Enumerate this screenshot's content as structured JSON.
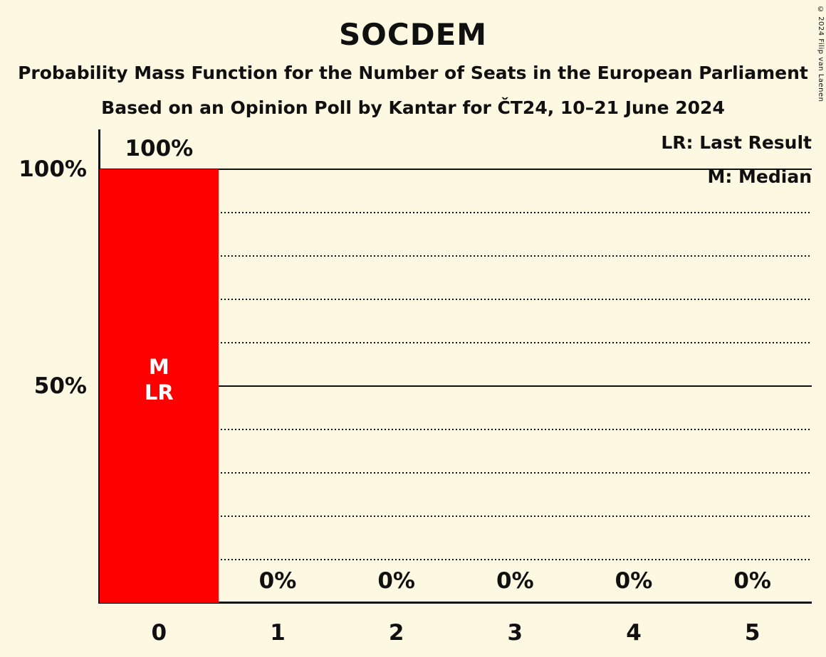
{
  "page": {
    "title": "SOCDEM",
    "subtitle1": "Probability Mass Function for the Number of Seats in the European Parliament",
    "subtitle2": "Based on an Opinion Poll by Kantar for ČT24, 10–21 June 2024",
    "copyright": "© 2024 Filip van Laenen"
  },
  "legend": {
    "last_result": "LR: Last Result",
    "median": "M: Median"
  },
  "colors": {
    "background": "#FCF8E1",
    "bar": "#FF0000",
    "text": "#101010",
    "annotation_text": "#FFFFFF"
  },
  "chart_data": {
    "type": "bar",
    "title": "SOCDEM",
    "categories": [
      "0",
      "1",
      "2",
      "3",
      "4",
      "5"
    ],
    "values": [
      100,
      0,
      0,
      0,
      0,
      0
    ],
    "value_labels": [
      "100%",
      "0%",
      "0%",
      "0%",
      "0%",
      "0%"
    ],
    "xlabel": "",
    "ylabel": "",
    "ylim": [
      0,
      100
    ],
    "yticks": [
      {
        "value": 100,
        "label": "100%"
      },
      {
        "value": 50,
        "label": "50%"
      }
    ],
    "gridlines_dotted": [
      90,
      80,
      70,
      60,
      40,
      30,
      20,
      10
    ],
    "gridlines_solid": [
      100,
      50
    ],
    "annotations": [
      {
        "category": "0",
        "lines": [
          "M",
          "LR"
        ]
      }
    ],
    "legend_position": "top-right",
    "grid": "dotted horizontal lines every 10%, solid at 50% and 100%"
  }
}
